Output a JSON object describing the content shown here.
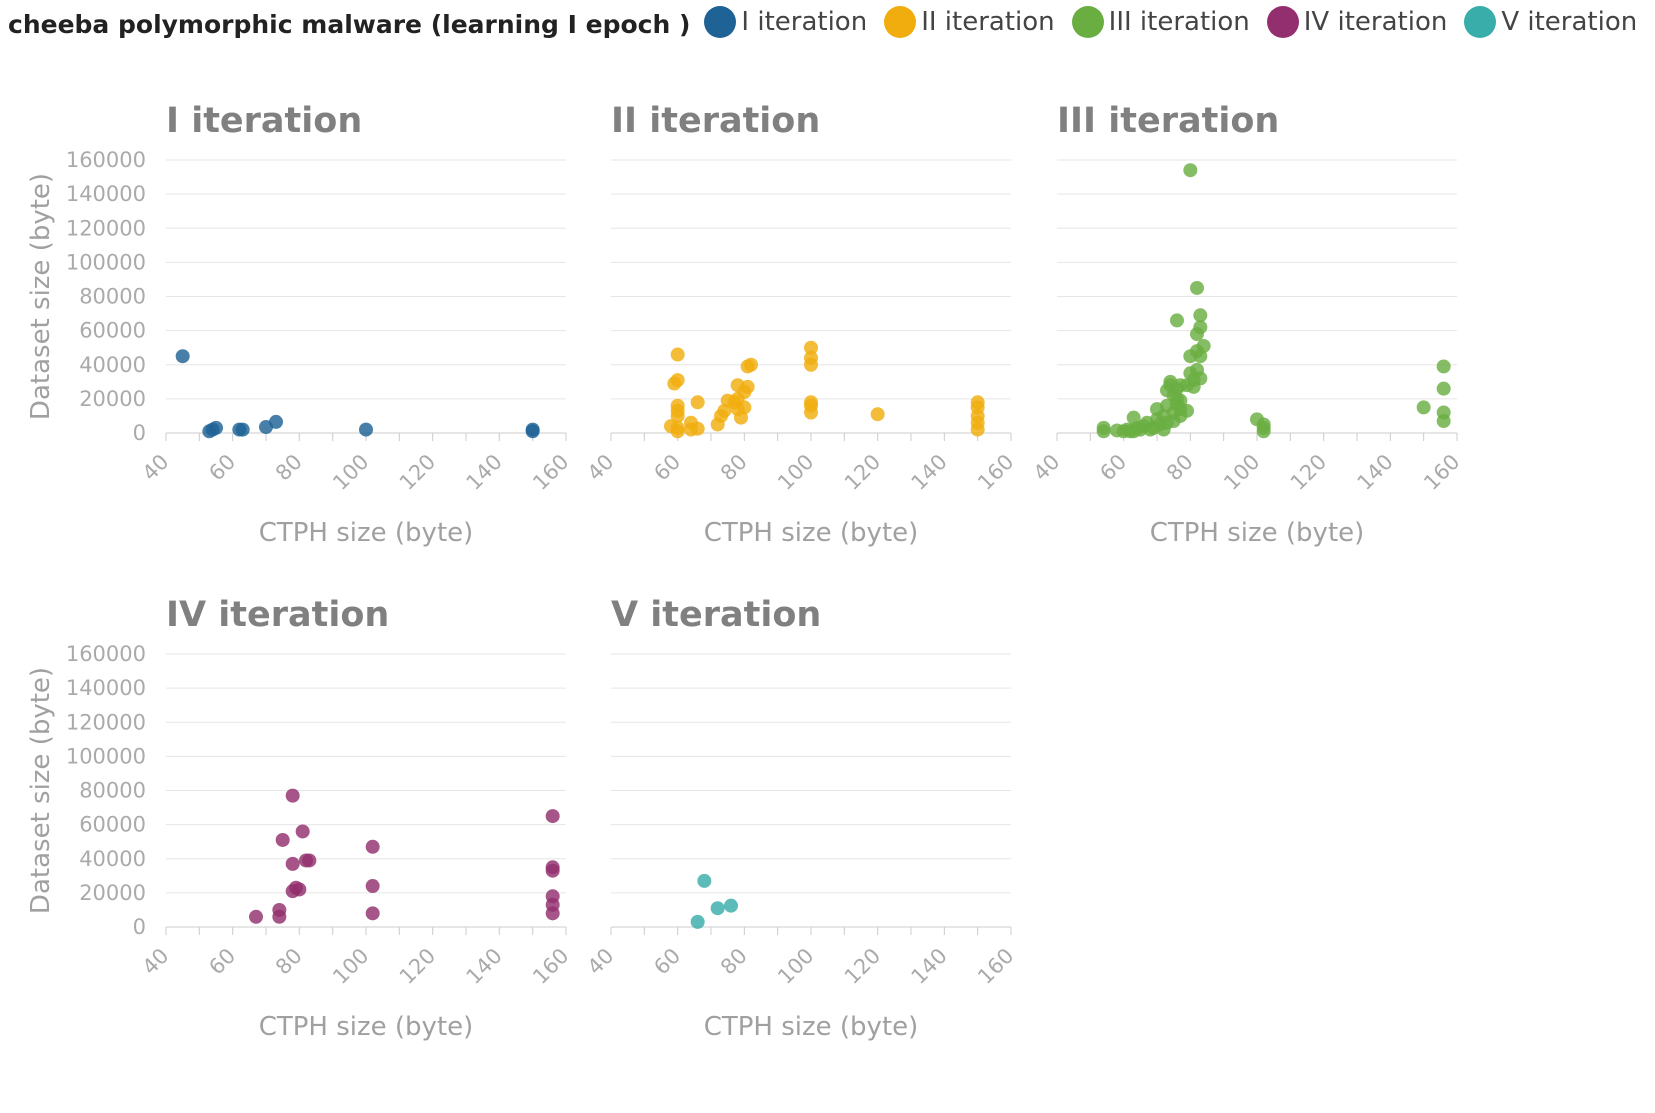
{
  "title": "cheeba polymorphic malware (learning I epoch )",
  "legend": [
    {
      "label": "I iteration",
      "color": "#1f6396"
    },
    {
      "label": "II iteration",
      "color": "#f0ad0d"
    },
    {
      "label": "III iteration",
      "color": "#6aae42"
    },
    {
      "label": "IV iteration",
      "color": "#932f6e"
    },
    {
      "label": "V iteration",
      "color": "#39ada9"
    }
  ],
  "chart_data": {
    "type": "scatter",
    "title": "cheeba polymorphic malware (learning I epoch )",
    "xlabel": "CTPH size (byte)",
    "ylabel": "Dataset size (byte)",
    "xlim": [
      40,
      160
    ],
    "ylim": [
      0,
      160000
    ],
    "x_ticks": [
      "40",
      "60",
      "80",
      "100",
      "120",
      "140",
      "160"
    ],
    "y_ticks": [
      "0",
      "20000",
      "40000",
      "60000",
      "80000",
      "100000",
      "120000",
      "140000",
      "160000"
    ],
    "grid": true,
    "legend_position": "top",
    "series": [
      {
        "name": "I iteration",
        "color": "#1f6396",
        "points": [
          [
            45,
            45000
          ],
          [
            53,
            1000
          ],
          [
            54,
            2000
          ],
          [
            55,
            3000
          ],
          [
            62,
            2000
          ],
          [
            63,
            2000
          ],
          [
            70,
            3500
          ],
          [
            73,
            6500
          ],
          [
            100,
            2000
          ],
          [
            150,
            1000
          ],
          [
            150,
            2000
          ]
        ]
      },
      {
        "name": "II iteration",
        "color": "#f0ad0d",
        "points": [
          [
            60,
            46000
          ],
          [
            60,
            31000
          ],
          [
            59,
            29000
          ],
          [
            60,
            16000
          ],
          [
            60,
            13000
          ],
          [
            60,
            10000
          ],
          [
            58,
            4000
          ],
          [
            60,
            3000
          ],
          [
            60,
            1000
          ],
          [
            64,
            6000
          ],
          [
            64,
            2000
          ],
          [
            66,
            2500
          ],
          [
            66,
            18000
          ],
          [
            72,
            5000
          ],
          [
            73,
            10000
          ],
          [
            74,
            13000
          ],
          [
            75,
            19000
          ],
          [
            77,
            18000
          ],
          [
            78,
            14000
          ],
          [
            78,
            20000
          ],
          [
            78,
            28000
          ],
          [
            79,
            9000
          ],
          [
            80,
            15000
          ],
          [
            80,
            24000
          ],
          [
            81,
            27000
          ],
          [
            81,
            39000
          ],
          [
            82,
            40000
          ],
          [
            100,
            50000
          ],
          [
            100,
            44000
          ],
          [
            100,
            40000
          ],
          [
            100,
            18000
          ],
          [
            100,
            12000
          ],
          [
            100,
            16000
          ],
          [
            120,
            11000
          ],
          [
            150,
            18000
          ],
          [
            150,
            15000
          ],
          [
            150,
            10000
          ],
          [
            150,
            6000
          ],
          [
            150,
            2000
          ]
        ]
      },
      {
        "name": "III iteration",
        "color": "#6aae42",
        "points": [
          [
            54,
            3000
          ],
          [
            54,
            1000
          ],
          [
            58,
            1500
          ],
          [
            60,
            1000
          ],
          [
            61,
            2000
          ],
          [
            62,
            1000
          ],
          [
            63,
            9000
          ],
          [
            63,
            1000
          ],
          [
            64,
            3000
          ],
          [
            65,
            2000
          ],
          [
            66,
            4000
          ],
          [
            67,
            6000
          ],
          [
            68,
            2000
          ],
          [
            69,
            3000
          ],
          [
            70,
            8000
          ],
          [
            70,
            14000
          ],
          [
            71,
            5000
          ],
          [
            72,
            10000
          ],
          [
            72,
            2000
          ],
          [
            73,
            6000
          ],
          [
            73,
            25000
          ],
          [
            73,
            16000
          ],
          [
            74,
            30000
          ],
          [
            74,
            28000
          ],
          [
            75,
            22000
          ],
          [
            75,
            12000
          ],
          [
            75,
            7000
          ],
          [
            76,
            20000
          ],
          [
            76,
            17000
          ],
          [
            76,
            26000
          ],
          [
            77,
            28000
          ],
          [
            77,
            10000
          ],
          [
            77,
            19000
          ],
          [
            77,
            14000
          ],
          [
            76,
            66000
          ],
          [
            79,
            13000
          ],
          [
            79,
            28000
          ],
          [
            80,
            35000
          ],
          [
            80,
            45000
          ],
          [
            81,
            31000
          ],
          [
            81,
            27000
          ],
          [
            82,
            37000
          ],
          [
            82,
            48000
          ],
          [
            82,
            58000
          ],
          [
            82,
            85000
          ],
          [
            83,
            32000
          ],
          [
            83,
            45000
          ],
          [
            83,
            62000
          ],
          [
            83,
            69000
          ],
          [
            84,
            51000
          ],
          [
            80,
            154000
          ],
          [
            100,
            8000
          ],
          [
            102,
            5000
          ],
          [
            102,
            3000
          ],
          [
            102,
            1000
          ],
          [
            150,
            15000
          ],
          [
            156,
            39000
          ],
          [
            156,
            26000
          ],
          [
            156,
            12000
          ],
          [
            156,
            7000
          ]
        ]
      },
      {
        "name": "IV iteration",
        "color": "#932f6e",
        "points": [
          [
            67,
            6000
          ],
          [
            74,
            10000
          ],
          [
            74,
            6000
          ],
          [
            75,
            51000
          ],
          [
            78,
            77000
          ],
          [
            78,
            37000
          ],
          [
            78,
            21000
          ],
          [
            79,
            23000
          ],
          [
            80,
            22000
          ],
          [
            81,
            56000
          ],
          [
            82,
            39000
          ],
          [
            83,
            39000
          ],
          [
            102,
            47000
          ],
          [
            102,
            24000
          ],
          [
            102,
            8000
          ],
          [
            156,
            65000
          ],
          [
            156,
            35000
          ],
          [
            156,
            33000
          ],
          [
            156,
            18000
          ],
          [
            156,
            13000
          ],
          [
            156,
            8000
          ]
        ]
      },
      {
        "name": "V iteration",
        "color": "#39ada9",
        "points": [
          [
            66,
            3000
          ],
          [
            68,
            27000
          ],
          [
            72,
            11000
          ],
          [
            76,
            12500
          ]
        ]
      }
    ]
  }
}
